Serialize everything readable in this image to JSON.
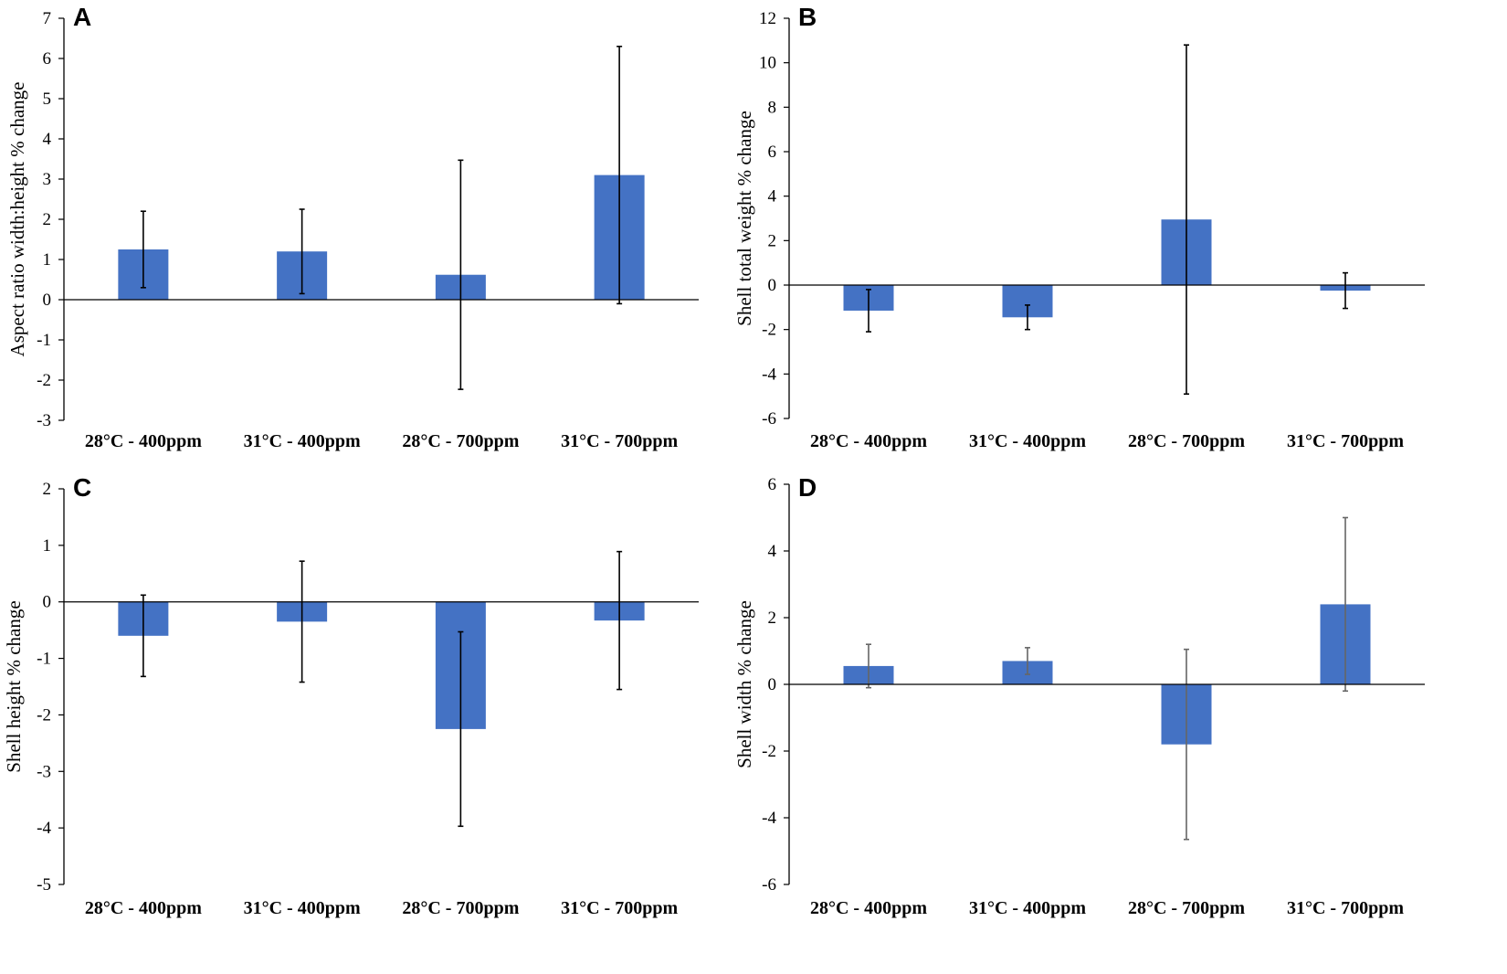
{
  "chart_data": [
    {
      "panel": "A",
      "type": "bar",
      "ylabel": "Aspect ratio width:height % change",
      "categories": [
        "28°C - 400ppm",
        "31°C - 400ppm",
        "28°C - 700ppm",
        "31°C - 700ppm"
      ],
      "values": [
        1.25,
        1.2,
        0.62,
        3.1
      ],
      "error": [
        0.95,
        1.05,
        2.85,
        3.2
      ],
      "ylim": [
        -3,
        7
      ],
      "yticks": [
        -3,
        -2,
        -1,
        0,
        1,
        2,
        3,
        4,
        5,
        6,
        7
      ],
      "bar_color": "#4472C4",
      "error_color": "#000000"
    },
    {
      "panel": "B",
      "type": "bar",
      "ylabel": "Shell total weight % change",
      "categories": [
        "28°C - 400ppm",
        "31°C - 400ppm",
        "28°C - 700ppm",
        "31°C - 700ppm"
      ],
      "values": [
        -1.15,
        -1.45,
        2.95,
        -0.25
      ],
      "error": [
        0.95,
        0.55,
        7.85,
        0.8
      ],
      "ylim": [
        -6,
        12
      ],
      "yticks": [
        -6,
        -4,
        -2,
        0,
        2,
        4,
        6,
        8,
        10,
        12
      ],
      "bar_color": "#4472C4",
      "error_color": "#000000"
    },
    {
      "panel": "C",
      "type": "bar",
      "ylabel": "Shell height % change",
      "categories": [
        "28°C - 400ppm",
        "31°C - 400ppm",
        "28°C - 700ppm",
        "31°C - 700ppm"
      ],
      "values": [
        -0.6,
        -0.35,
        -2.25,
        -0.33
      ],
      "error": [
        0.72,
        1.07,
        1.72,
        1.22
      ],
      "ylim": [
        -5,
        2
      ],
      "yticks": [
        -5,
        -4,
        -3,
        -2,
        -1,
        0,
        1,
        2
      ],
      "bar_color": "#4472C4",
      "error_color": "#000000"
    },
    {
      "panel": "D",
      "type": "bar",
      "ylabel": "Shell width % change",
      "categories": [
        "28°C - 400ppm",
        "31°C - 400ppm",
        "28°C - 700ppm",
        "31°C - 700ppm"
      ],
      "values": [
        0.55,
        0.7,
        -1.8,
        2.4
      ],
      "error": [
        0.65,
        0.4,
        2.85,
        2.6
      ],
      "ylim": [
        -6,
        6
      ],
      "yticks": [
        -6,
        -4,
        -2,
        0,
        2,
        4,
        6
      ],
      "bar_color": "#4472C4",
      "error_color": "#666666"
    }
  ]
}
